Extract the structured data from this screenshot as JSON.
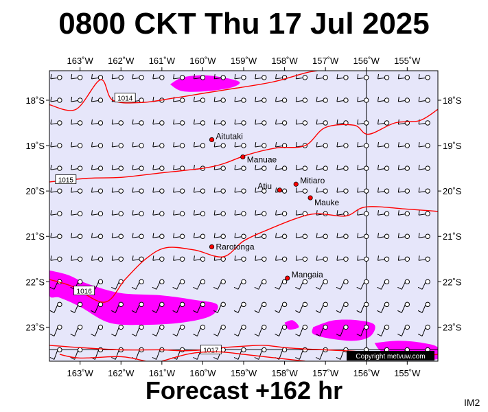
{
  "title": "0800 CKT Thu 17 Jul 2025",
  "forecast_label": "Forecast +162 hr",
  "image_id_label": "IM2",
  "copyright": "Copyright metvuw.com",
  "colors": {
    "background": "#e6e6fa",
    "precipitation": "#ff00ff",
    "isobar": "#ff0000",
    "station": "#ff0000",
    "barb": "#000000"
  },
  "map_extent": {
    "lon_min": -163.75,
    "lon_max": -154.25,
    "lat_min": -23.75,
    "lat_max": -17.35
  },
  "longitude_ticks": [
    {
      "value": -163,
      "label": "163˚W"
    },
    {
      "value": -162,
      "label": "162˚W"
    },
    {
      "value": -161,
      "label": "161˚W"
    },
    {
      "value": -160,
      "label": "160˚W"
    },
    {
      "value": -159,
      "label": "159˚W"
    },
    {
      "value": -158,
      "label": "158˚W"
    },
    {
      "value": -157,
      "label": "157˚W"
    },
    {
      "value": -156,
      "label": "156˚W"
    },
    {
      "value": -155,
      "label": "155˚W"
    }
  ],
  "latitude_ticks": [
    {
      "value": -18,
      "label": "18˚S"
    },
    {
      "value": -19,
      "label": "19˚S"
    },
    {
      "value": -20,
      "label": "20˚S"
    },
    {
      "value": -21,
      "label": "21˚S"
    },
    {
      "value": -22,
      "label": "22˚S"
    },
    {
      "value": -23,
      "label": "23˚S"
    }
  ],
  "stations": [
    {
      "name": "Aitutaki",
      "lon": -159.78,
      "lat": -18.87
    },
    {
      "name": "Manuae",
      "lon": -159.02,
      "lat": -19.25
    },
    {
      "name": "Atiu",
      "lon": -158.12,
      "lat": -19.98
    },
    {
      "name": "Mitiaro",
      "lon": -157.72,
      "lat": -19.85
    },
    {
      "name": "Mauke",
      "lon": -157.37,
      "lat": -20.15
    },
    {
      "name": "Rarotonga",
      "lon": -159.78,
      "lat": -21.23
    },
    {
      "name": "Mangaia",
      "lon": -157.93,
      "lat": -21.92
    }
  ],
  "isobars": [
    {
      "label": "1014",
      "label_lon": -161.9,
      "label_lat": -17.95,
      "points": [
        [
          -163.75,
          -18.1
        ],
        [
          -163.1,
          -18.2
        ],
        [
          -162.5,
          -17.55
        ],
        [
          -162.2,
          -18.0
        ],
        [
          -161.5,
          -18.05
        ],
        [
          -160.7,
          -17.95
        ],
        [
          -160.0,
          -17.85
        ],
        [
          -159.3,
          -17.75
        ],
        [
          -158.3,
          -17.6
        ],
        [
          -157.5,
          -17.4
        ],
        [
          -157.2,
          -17.35
        ]
      ]
    },
    {
      "label": "1015",
      "label_lon": -163.35,
      "label_lat": -19.75,
      "points": [
        [
          -163.75,
          -19.8
        ],
        [
          -162.8,
          -19.72
        ],
        [
          -162.0,
          -19.7
        ],
        [
          -161.0,
          -19.6
        ],
        [
          -160.0,
          -19.5
        ],
        [
          -159.5,
          -19.4
        ],
        [
          -158.9,
          -19.2
        ],
        [
          -158.2,
          -19.05
        ],
        [
          -157.5,
          -19.0
        ],
        [
          -157.0,
          -18.6
        ],
        [
          -156.3,
          -18.55
        ],
        [
          -155.95,
          -18.75
        ],
        [
          -155.3,
          -18.5
        ],
        [
          -154.7,
          -18.45
        ],
        [
          -154.25,
          -18.2
        ]
      ]
    },
    {
      "label": "1016",
      "label_lon": -162.9,
      "label_lat": -22.2,
      "points": [
        [
          -163.75,
          -21.95
        ],
        [
          -163.2,
          -22.1
        ],
        [
          -162.4,
          -22.45
        ],
        [
          -161.9,
          -21.95
        ],
        [
          -161.4,
          -21.5
        ],
        [
          -160.9,
          -21.25
        ],
        [
          -160.2,
          -21.3
        ],
        [
          -159.5,
          -21.45
        ],
        [
          -159.0,
          -21.1
        ],
        [
          -158.4,
          -20.85
        ],
        [
          -157.7,
          -20.6
        ],
        [
          -157.2,
          -20.5
        ],
        [
          -156.5,
          -20.55
        ],
        [
          -156.0,
          -20.35
        ],
        [
          -155.0,
          -20.4
        ],
        [
          -154.25,
          -20.45
        ]
      ]
    },
    {
      "label": "1017",
      "label_lon": -159.8,
      "label_lat": -23.5,
      "points": [
        [
          -163.75,
          -23.4
        ],
        [
          -163.0,
          -23.45
        ],
        [
          -162.0,
          -23.5
        ],
        [
          -161.0,
          -23.5
        ],
        [
          -160.5,
          -23.52
        ],
        [
          -160.0,
          -23.5
        ],
        [
          -159.5,
          -23.45
        ],
        [
          -159.0,
          -23.42
        ],
        [
          -158.5,
          -23.4
        ],
        [
          -158.0,
          -23.45
        ],
        [
          -157.5,
          -23.48
        ],
        [
          -157.0,
          -23.5
        ],
        [
          -156.0,
          -23.55
        ],
        [
          -155.0,
          -23.65
        ],
        [
          -154.25,
          -23.6
        ]
      ]
    },
    {
      "label": "",
      "label_lon": -162.0,
      "label_lat": -23.6,
      "points": [
        [
          -163.5,
          -23.6
        ],
        [
          -163.0,
          -23.68
        ],
        [
          -162.0,
          -23.65
        ],
        [
          -161.4,
          -23.75
        ]
      ]
    },
    {
      "label": "",
      "label_lon": -160.5,
      "label_lat": -23.7,
      "points": [
        [
          -161.0,
          -23.75
        ],
        [
          -160.4,
          -23.6
        ],
        [
          -160.0,
          -23.55
        ],
        [
          -159.5,
          -23.55
        ],
        [
          -159.0,
          -23.6
        ],
        [
          -158.5,
          -23.65
        ],
        [
          -158.0,
          -23.7
        ],
        [
          -157.5,
          -23.75
        ]
      ]
    }
  ],
  "precipitation_areas": [
    {
      "points": [
        [
          -160.8,
          -17.65
        ],
        [
          -160.5,
          -17.5
        ],
        [
          -160.0,
          -17.45
        ],
        [
          -159.5,
          -17.5
        ],
        [
          -159.1,
          -17.6
        ],
        [
          -159.3,
          -17.72
        ],
        [
          -159.9,
          -17.8
        ],
        [
          -160.5,
          -17.8
        ]
      ]
    },
    {
      "points": [
        [
          -163.75,
          -21.75
        ],
        [
          -163.3,
          -21.85
        ],
        [
          -162.8,
          -22.05
        ],
        [
          -162.0,
          -22.25
        ],
        [
          -161.0,
          -22.3
        ],
        [
          -160.2,
          -22.4
        ],
        [
          -159.65,
          -22.5
        ],
        [
          -159.8,
          -22.75
        ],
        [
          -160.5,
          -22.9
        ],
        [
          -161.5,
          -22.95
        ],
        [
          -162.3,
          -22.9
        ],
        [
          -163.0,
          -22.55
        ],
        [
          -163.5,
          -22.35
        ],
        [
          -163.75,
          -22.3
        ]
      ]
    },
    {
      "points": [
        [
          -157.3,
          -23.0
        ],
        [
          -156.8,
          -22.85
        ],
        [
          -156.2,
          -22.85
        ],
        [
          -155.8,
          -22.95
        ],
        [
          -155.9,
          -23.2
        ],
        [
          -156.3,
          -23.3
        ],
        [
          -156.9,
          -23.25
        ],
        [
          -157.3,
          -23.15
        ]
      ]
    },
    {
      "points": [
        [
          -158.0,
          -22.9
        ],
        [
          -157.8,
          -22.85
        ],
        [
          -157.65,
          -23.0
        ],
        [
          -157.9,
          -23.05
        ]
      ]
    },
    {
      "points": [
        [
          -155.8,
          -23.35
        ],
        [
          -155.2,
          -23.3
        ],
        [
          -154.6,
          -23.35
        ],
        [
          -154.25,
          -23.45
        ],
        [
          -154.25,
          -23.7
        ],
        [
          -155.0,
          -23.7
        ],
        [
          -155.6,
          -23.55
        ]
      ]
    }
  ],
  "wind_grid": {
    "lon_start": -163.5,
    "lon_step": 0.5,
    "lat_start": -17.5,
    "lat_step": -0.5,
    "cols": 19,
    "rows": 13
  },
  "reference_lines": [
    {
      "axis": "lon",
      "value": -156
    },
    {
      "axis": "lat",
      "value": -23.5
    }
  ]
}
